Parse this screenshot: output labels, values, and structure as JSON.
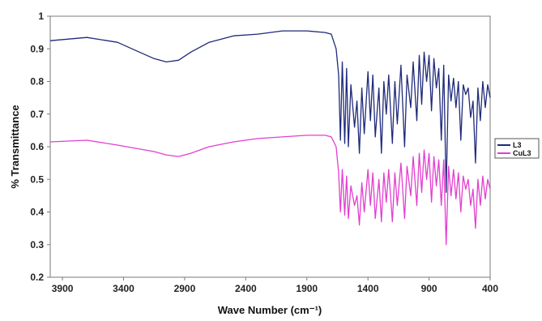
{
  "chart_data": {
    "type": "line",
    "title": "",
    "xlabel": "Wave Number (cm⁻¹)",
    "ylabel": "% Transmittance",
    "xlim": [
      4000,
      400
    ],
    "x_reversed": true,
    "ylim": [
      0.2,
      1.0
    ],
    "x_ticks": [
      3900,
      3400,
      2900,
      2400,
      1900,
      1400,
      900,
      400
    ],
    "y_ticks": [
      0.2,
      0.3,
      0.4,
      0.5,
      0.6,
      0.7,
      0.8,
      0.9,
      1.0
    ],
    "y_tick_labels": [
      "0.2",
      "0.3",
      "0.4",
      "0.5",
      "0.6",
      "0.7",
      "0.8",
      "0.9",
      "1"
    ],
    "grid": false,
    "legend_position": "right",
    "series": [
      {
        "name": "L3",
        "color": "#1f2a7a",
        "x": [
          4000,
          3700,
          3450,
          3300,
          3150,
          3050,
          2950,
          2850,
          2700,
          2500,
          2300,
          2100,
          1900,
          1750,
          1700,
          1660,
          1640,
          1625,
          1610,
          1590,
          1575,
          1560,
          1540,
          1510,
          1490,
          1470,
          1450,
          1430,
          1400,
          1380,
          1360,
          1340,
          1310,
          1290,
          1270,
          1250,
          1230,
          1200,
          1180,
          1160,
          1130,
          1100,
          1080,
          1050,
          1030,
          1000,
          980,
          960,
          940,
          920,
          900,
          880,
          860,
          840,
          820,
          800,
          780,
          760,
          740,
          720,
          700,
          680,
          660,
          640,
          620,
          600,
          580,
          560,
          540,
          520,
          500,
          480,
          460,
          440,
          420,
          400
        ],
        "y": [
          0.925,
          0.935,
          0.92,
          0.895,
          0.87,
          0.86,
          0.865,
          0.89,
          0.92,
          0.94,
          0.945,
          0.955,
          0.955,
          0.95,
          0.945,
          0.9,
          0.82,
          0.62,
          0.86,
          0.61,
          0.84,
          0.6,
          0.79,
          0.66,
          0.74,
          0.58,
          0.78,
          0.64,
          0.83,
          0.68,
          0.82,
          0.63,
          0.78,
          0.58,
          0.8,
          0.7,
          0.82,
          0.61,
          0.8,
          0.67,
          0.85,
          0.6,
          0.82,
          0.72,
          0.86,
          0.68,
          0.88,
          0.73,
          0.89,
          0.8,
          0.88,
          0.71,
          0.87,
          0.78,
          0.84,
          0.62,
          0.85,
          0.46,
          0.82,
          0.74,
          0.81,
          0.72,
          0.8,
          0.62,
          0.79,
          0.76,
          0.78,
          0.69,
          0.74,
          0.55,
          0.78,
          0.68,
          0.8,
          0.72,
          0.79,
          0.75
        ]
      },
      {
        "name": "CuL3",
        "color": "#e23fd0",
        "x": [
          4000,
          3700,
          3450,
          3300,
          3150,
          3050,
          2950,
          2850,
          2700,
          2500,
          2300,
          2100,
          1900,
          1750,
          1700,
          1660,
          1640,
          1625,
          1610,
          1590,
          1575,
          1560,
          1540,
          1510,
          1490,
          1470,
          1450,
          1430,
          1400,
          1380,
          1360,
          1340,
          1310,
          1290,
          1270,
          1250,
          1230,
          1200,
          1180,
          1160,
          1130,
          1100,
          1080,
          1050,
          1030,
          1000,
          980,
          960,
          940,
          920,
          900,
          880,
          860,
          840,
          820,
          800,
          780,
          760,
          740,
          720,
          700,
          680,
          660,
          640,
          620,
          600,
          580,
          560,
          540,
          520,
          500,
          480,
          460,
          440,
          420,
          400
        ],
        "y": [
          0.615,
          0.62,
          0.605,
          0.595,
          0.585,
          0.575,
          0.57,
          0.58,
          0.6,
          0.615,
          0.625,
          0.63,
          0.635,
          0.635,
          0.63,
          0.6,
          0.52,
          0.4,
          0.53,
          0.39,
          0.51,
          0.38,
          0.48,
          0.42,
          0.45,
          0.36,
          0.49,
          0.4,
          0.53,
          0.42,
          0.52,
          0.38,
          0.5,
          0.37,
          0.52,
          0.43,
          0.53,
          0.37,
          0.52,
          0.42,
          0.55,
          0.38,
          0.54,
          0.45,
          0.57,
          0.42,
          0.58,
          0.46,
          0.59,
          0.5,
          0.58,
          0.43,
          0.57,
          0.48,
          0.56,
          0.42,
          0.56,
          0.3,
          0.54,
          0.45,
          0.53,
          0.44,
          0.52,
          0.4,
          0.51,
          0.47,
          0.5,
          0.42,
          0.47,
          0.35,
          0.5,
          0.42,
          0.51,
          0.44,
          0.5,
          0.47
        ]
      }
    ]
  }
}
